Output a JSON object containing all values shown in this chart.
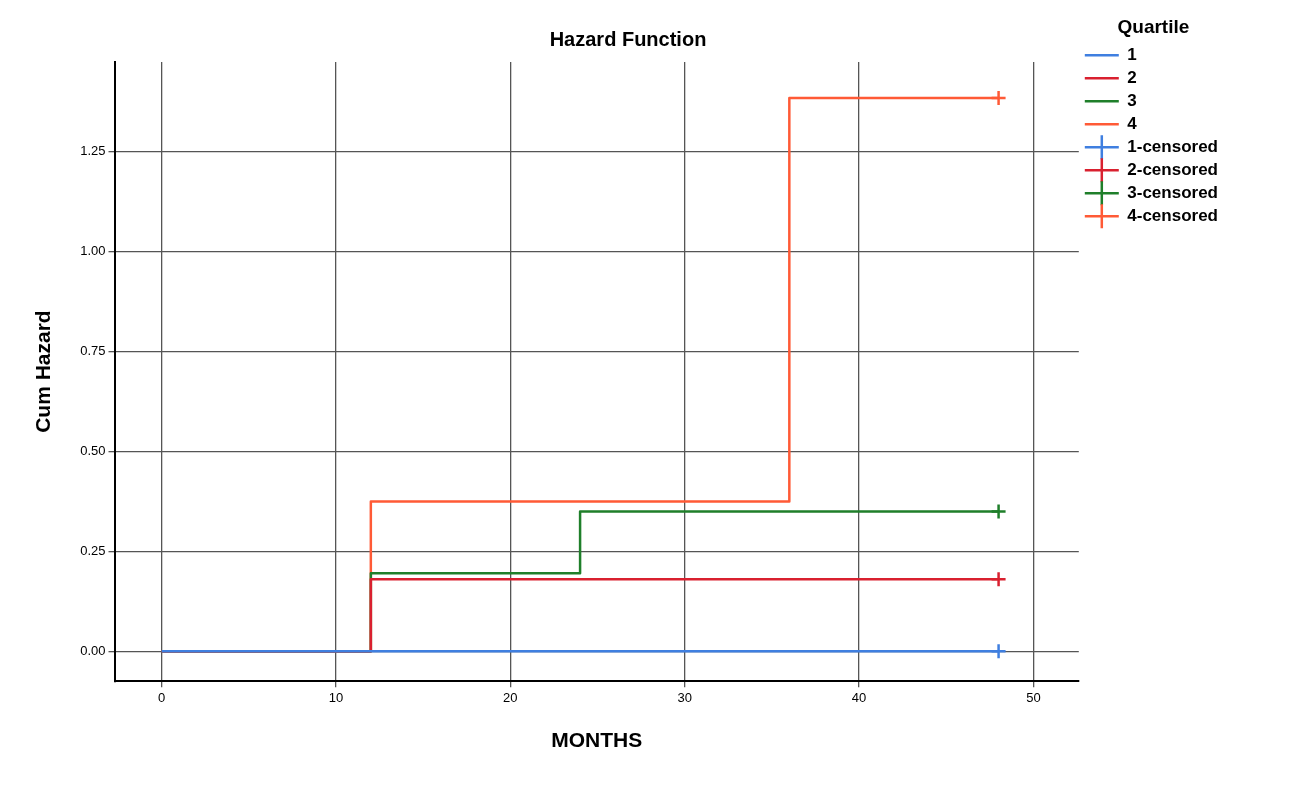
{
  "chart_data": {
    "type": "step",
    "title": "Hazard Function",
    "xlabel": "MONTHS",
    "ylabel": "Cum Hazard",
    "legend_title": "Quartile",
    "legend": "right",
    "xlim": [
      -2.7,
      52.6
    ],
    "xticks": [
      0,
      10,
      20,
      30,
      40,
      50
    ],
    "ylim": [
      -0.075,
      1.475
    ],
    "yticks": [
      {
        "value": 0,
        "label": "0.00"
      },
      {
        "value": 0.25,
        "label": "0.25"
      },
      {
        "value": 0.5,
        "label": "0.50"
      },
      {
        "value": 0.75,
        "label": "0.75"
      },
      {
        "value": 1,
        "label": "1.00"
      },
      {
        "value": 1.25,
        "label": "1.25"
      }
    ],
    "grid": true,
    "series": [
      {
        "name": "1",
        "type": "step",
        "color": "#3f7fe0",
        "x": [
          0,
          12,
          48
        ],
        "values": [
          0,
          0,
          0
        ]
      },
      {
        "name": "2",
        "type": "step",
        "color": "#d9202f",
        "x": [
          0,
          12,
          48
        ],
        "values": [
          0,
          0.18,
          0.18
        ]
      },
      {
        "name": "3",
        "type": "step",
        "color": "#1f7f2a",
        "x": [
          0,
          12,
          24,
          48
        ],
        "values": [
          0,
          0.195,
          0.35,
          0.35
        ]
      },
      {
        "name": "4",
        "type": "step",
        "color": "#ff5a36",
        "x": [
          0,
          12,
          36,
          48
        ],
        "values": [
          0,
          0.375,
          1.385,
          1.385
        ]
      },
      {
        "name": "1-censored",
        "type": "scatter",
        "marker": "cross",
        "color": "#3f7fe0",
        "x": [
          48
        ],
        "values": [
          0
        ]
      },
      {
        "name": "2-censored",
        "type": "scatter",
        "marker": "cross",
        "color": "#d9202f",
        "x": [
          48
        ],
        "values": [
          0.18
        ]
      },
      {
        "name": "3-censored",
        "type": "scatter",
        "marker": "cross",
        "color": "#1f7f2a",
        "x": [
          48
        ],
        "values": [
          0.35
        ]
      },
      {
        "name": "4-censored",
        "type": "scatter",
        "marker": "cross",
        "color": "#ff5a36",
        "x": [
          48
        ],
        "values": [
          1.385
        ]
      }
    ]
  }
}
